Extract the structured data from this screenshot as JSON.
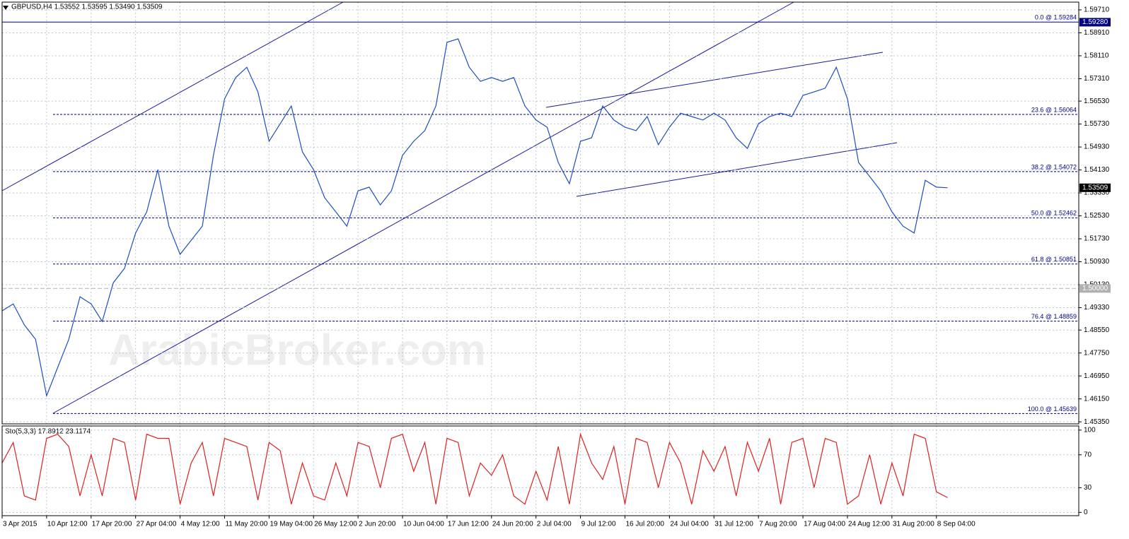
{
  "chart_data": [
    {
      "type": "line",
      "title": "GBPUSD,H4  1.53552 1.53595 1.53490 1.53509",
      "watermark": "ArabicBroker.com",
      "x": [
        0,
        10,
        20,
        30,
        40,
        50,
        60,
        70,
        80,
        90,
        100,
        110,
        120,
        130,
        140,
        150,
        160,
        170,
        180,
        190,
        200,
        210,
        220,
        230,
        240,
        250,
        260,
        270,
        280,
        290,
        300,
        310,
        320,
        330,
        340,
        350,
        360,
        370,
        380,
        390,
        400,
        410,
        420,
        430,
        440,
        450,
        460,
        470,
        480,
        490,
        500,
        510,
        520,
        530,
        540,
        550,
        560,
        570,
        580,
        590,
        600,
        610,
        620,
        630,
        640,
        650,
        660,
        670,
        680,
        690,
        700,
        710,
        720,
        730,
        740,
        750,
        760,
        770,
        780,
        790,
        800,
        810,
        820,
        830,
        840,
        850
      ],
      "series": [
        {
          "color": "#1f4fbf",
          "values": [
            1.4922,
            1.4946,
            1.4873,
            1.4823,
            1.4626,
            1.4725,
            1.4823,
            1.4971,
            1.4946,
            1.4885,
            1.502,
            1.507,
            1.5193,
            1.5267,
            1.5414,
            1.5217,
            1.5119,
            1.5168,
            1.5217,
            1.5464,
            1.5661,
            1.5735,
            1.5771,
            1.5685,
            1.5513,
            1.5574,
            1.5636,
            1.5476,
            1.5414,
            1.5316,
            1.5267,
            1.5217,
            1.534,
            1.5353,
            1.5291,
            1.534,
            1.5464,
            1.5513,
            1.555,
            1.5636,
            1.5858,
            1.587,
            1.5771,
            1.5722,
            1.5735,
            1.5722,
            1.5735,
            1.5636,
            1.5587,
            1.5562,
            1.5439,
            1.5365,
            1.5513,
            1.5525,
            1.5636,
            1.5587,
            1.5562,
            1.555,
            1.5599,
            1.5501,
            1.5562,
            1.5611,
            1.5599,
            1.5587,
            1.5611,
            1.5587,
            1.5525,
            1.5488,
            1.5574,
            1.5599,
            1.5611,
            1.5599,
            1.5673,
            1.5685,
            1.5698,
            1.5771,
            1.5661,
            1.5439,
            1.539,
            1.534,
            1.5267,
            1.5217,
            1.5193,
            1.5377,
            1.5353,
            1.5351
          ]
        }
      ],
      "xlim": [
        0,
        968
      ],
      "xticks": [
        {
          "value": 0,
          "label": "3 Apr 2015"
        },
        {
          "value": 40,
          "label": "10 Apr 12:00"
        },
        {
          "value": 80,
          "label": "17 Apr 20:00"
        },
        {
          "value": 120,
          "label": "27 Apr 04:00"
        },
        {
          "value": 160,
          "label": "4 May 12:00"
        },
        {
          "value": 200,
          "label": "11 May 20:00"
        },
        {
          "value": 240,
          "label": "19 May 04:00"
        },
        {
          "value": 280,
          "label": "26 May 12:00"
        },
        {
          "value": 320,
          "label": "2 Jun 20:00"
        },
        {
          "value": 360,
          "label": "10 Jun 04:00"
        },
        {
          "value": 400,
          "label": "17 Jun 12:00"
        },
        {
          "value": 440,
          "label": "24 Jun 20:00"
        },
        {
          "value": 480,
          "label": "2 Jul 04:00"
        },
        {
          "value": 520,
          "label": "9 Jul 12:00"
        },
        {
          "value": 560,
          "label": "16 Jul 20:00"
        },
        {
          "value": 600,
          "label": "24 Jul 04:00"
        },
        {
          "value": 640,
          "label": "31 Jul 12:00"
        },
        {
          "value": 680,
          "label": "7 Aug 20:00"
        },
        {
          "value": 720,
          "label": "17 Aug 04:00"
        },
        {
          "value": 760,
          "label": "24 Aug 12:00"
        },
        {
          "value": 800,
          "label": "31 Aug 20:00"
        },
        {
          "value": 840,
          "label": "8 Sep 04:00"
        }
      ],
      "ylim": [
        1.4528,
        1.5998
      ],
      "yticks": [
        {
          "value": 1.5971,
          "label": "1.59710"
        },
        {
          "value": 1.5891,
          "label": "1.58910"
        },
        {
          "value": 1.5811,
          "label": "1.58110"
        },
        {
          "value": 1.5731,
          "label": "1.57310"
        },
        {
          "value": 1.5653,
          "label": "1.56530"
        },
        {
          "value": 1.5573,
          "label": "1.55730"
        },
        {
          "value": 1.5493,
          "label": "1.54930"
        },
        {
          "value": 1.5413,
          "label": "1.54130"
        },
        {
          "value": 1.5333,
          "label": "1.53330"
        },
        {
          "value": 1.5253,
          "label": "1.52530"
        },
        {
          "value": 1.5173,
          "label": "1.51730"
        },
        {
          "value": 1.5093,
          "label": "1.50930"
        },
        {
          "value": 1.5013,
          "label": "1.50130"
        },
        {
          "value": 1.4933,
          "label": "1.49330"
        },
        {
          "value": 1.4855,
          "label": "1.48550"
        },
        {
          "value": 1.4775,
          "label": "1.47750"
        },
        {
          "value": 1.4695,
          "label": "1.46950"
        },
        {
          "value": 1.4615,
          "label": "1.46150"
        },
        {
          "value": 1.4535,
          "label": "1.45350"
        }
      ],
      "grid": true,
      "levels": [
        {
          "value": 1.59284,
          "label": "0.0 @ 1.59284",
          "dashed": false
        },
        {
          "value": 1.56064,
          "label": "23.6 @ 1.56064",
          "dashed": true
        },
        {
          "value": 1.54072,
          "label": "38.2 @ 1.54072",
          "dashed": true
        },
        {
          "value": 1.52462,
          "label": "50.0 @ 1.52462",
          "dashed": true
        },
        {
          "value": 1.50851,
          "label": "61.8 @ 1.50851",
          "dashed": true
        },
        {
          "value": 1.48859,
          "label": "76.4 @ 1.48859",
          "dashed": true
        },
        {
          "value": 1.45639,
          "label": "100.0 @ 1.45639",
          "dashed": true
        }
      ],
      "level_color": "#000080",
      "markers": [
        {
          "value": 1.5928,
          "label": "1.59280",
          "color": "#000080",
          "line": false
        },
        {
          "value": 1.5,
          "label": "1.50000",
          "color": "#b0b0b0",
          "line": true
        },
        {
          "value": 1.53509,
          "label": "1.53509",
          "color": "#000000",
          "line": false
        }
      ]
    },
    {
      "type": "line",
      "title": "Sto(5,3,3) 17.8912 23.1174",
      "x": [
        0,
        10,
        20,
        30,
        40,
        50,
        60,
        70,
        80,
        90,
        100,
        110,
        120,
        130,
        140,
        150,
        160,
        170,
        180,
        190,
        200,
        210,
        220,
        230,
        240,
        250,
        260,
        270,
        280,
        290,
        300,
        310,
        320,
        330,
        340,
        350,
        360,
        370,
        380,
        390,
        400,
        410,
        420,
        430,
        440,
        450,
        460,
        470,
        480,
        490,
        500,
        510,
        520,
        530,
        540,
        550,
        560,
        570,
        580,
        590,
        600,
        610,
        620,
        630,
        640,
        650,
        660,
        670,
        680,
        690,
        700,
        710,
        720,
        730,
        740,
        750,
        760,
        770,
        780,
        790,
        800,
        810,
        820,
        830,
        840,
        850
      ],
      "series": [
        {
          "color": "#e02020",
          "values": [
            60,
            85,
            20,
            15,
            90,
            95,
            80,
            20,
            70,
            20,
            90,
            85,
            15,
            95,
            90,
            90,
            10,
            60,
            85,
            20,
            90,
            85,
            80,
            15,
            85,
            75,
            10,
            60,
            20,
            15,
            60,
            20,
            85,
            80,
            30,
            90,
            95,
            50,
            85,
            10,
            90,
            85,
            20,
            60,
            45,
            70,
            20,
            10,
            50,
            15,
            80,
            10,
            95,
            60,
            40,
            80,
            10,
            90,
            85,
            30,
            85,
            60,
            10,
            75,
            50,
            80,
            20,
            85,
            50,
            90,
            10,
            85,
            90,
            30,
            90,
            85,
            10,
            20,
            70,
            10,
            60,
            20,
            95,
            90,
            25,
            18
          ]
        }
      ],
      "xlim": [
        0,
        968
      ],
      "ylim": [
        -4,
        105
      ],
      "yticks": [
        100,
        70,
        30,
        0
      ],
      "grid": true
    }
  ]
}
